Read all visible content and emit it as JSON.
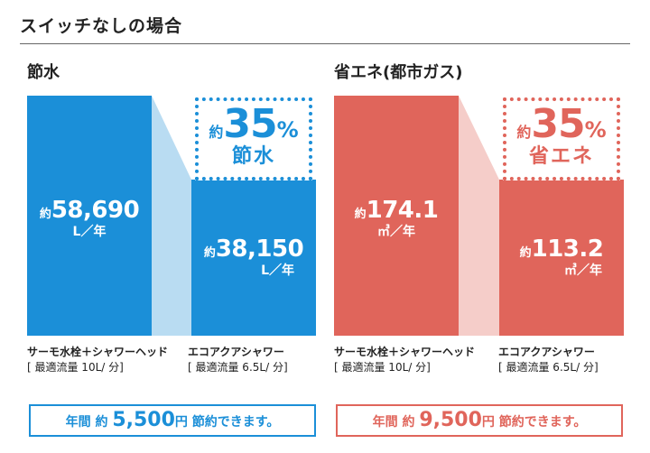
{
  "page_title": "スイッチなしの場合",
  "chart_data": [
    {
      "type": "bar",
      "title": "節水",
      "categories": [
        "サーモ水栓＋シャワーヘッド",
        "エコアクアシャワー"
      ],
      "category_notes": [
        "[ 最適流量 10L/ 分]",
        "[ 最適流量 6.5L/ 分]"
      ],
      "values": [
        58690,
        38150
      ],
      "value_labels": [
        "58,690",
        "38,150"
      ],
      "unit": "L／年",
      "value_prefix": "約",
      "reduction": {
        "prefix": "約",
        "percent": "35",
        "symbol": "%",
        "label": "節水"
      },
      "summary": {
        "prefix": "年間 約",
        "amount": "5,500",
        "currency": "円",
        "suffix": "節約できます。"
      },
      "color": "#1b8fd8",
      "connector_color": "#b9dcf2",
      "badge_color": "#1b8fd8"
    },
    {
      "type": "bar",
      "title": "省エネ(都市ガス)",
      "categories": [
        "サーモ水栓＋シャワーヘッド",
        "エコアクアシャワー"
      ],
      "category_notes": [
        "[ 最適流量 10L/ 分]",
        "[ 最適流量 6.5L/ 分]"
      ],
      "values": [
        174.1,
        113.2
      ],
      "value_labels": [
        "174.1",
        "113.2"
      ],
      "unit": "㎥／年",
      "value_prefix": "約",
      "reduction": {
        "prefix": "約",
        "percent": "35",
        "symbol": "%",
        "label": "省エネ"
      },
      "summary": {
        "prefix": "年間 約",
        "amount": "9,500",
        "currency": "円",
        "suffix": "節約できます。"
      },
      "color": "#e0655b",
      "connector_color": "#f5cdc9",
      "badge_color": "#e0655b"
    }
  ]
}
